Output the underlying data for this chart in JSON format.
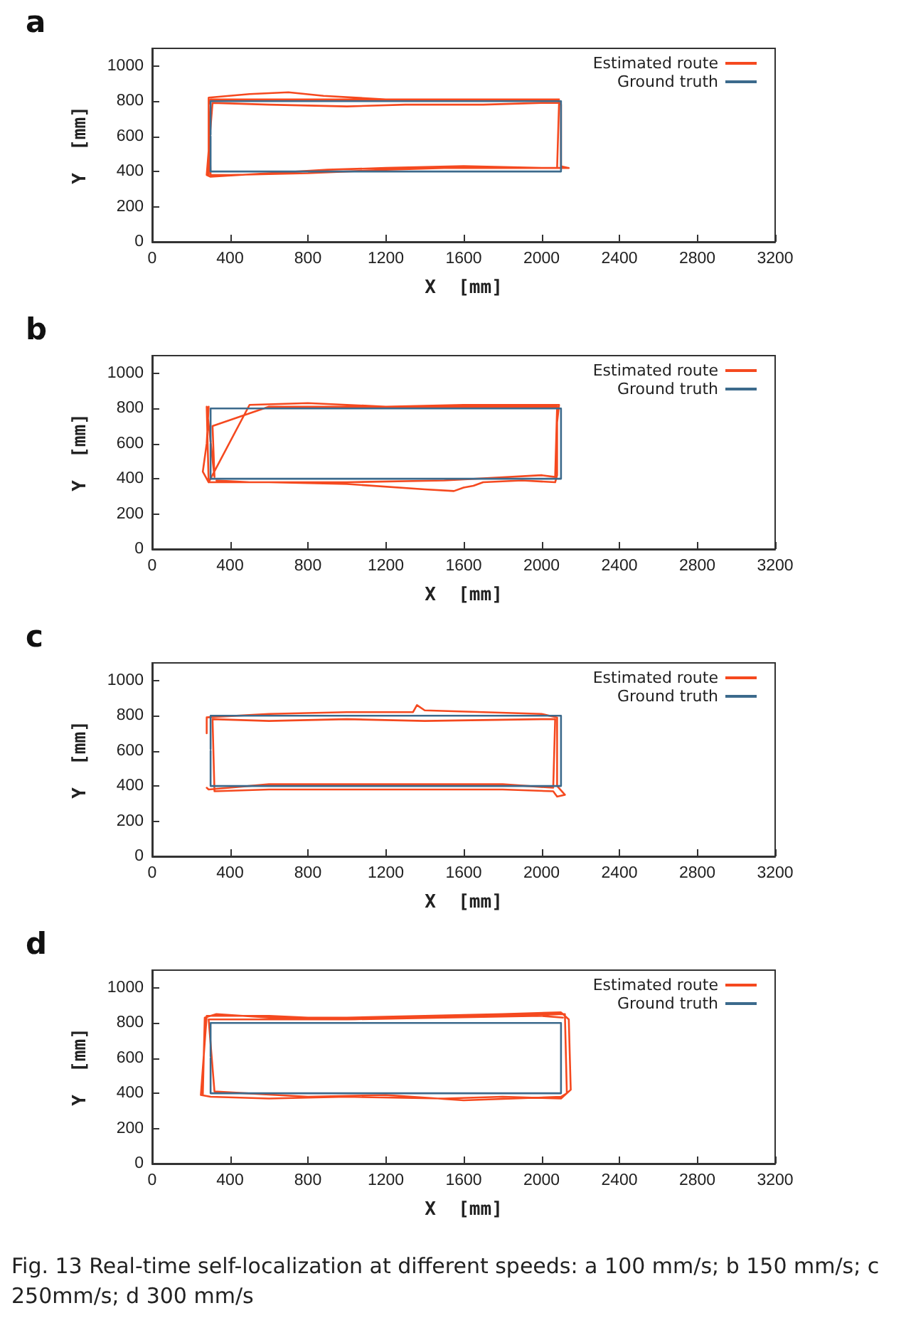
{
  "chart_data": [
    {
      "type": "line",
      "title": "a",
      "xlabel": "X  [mm]",
      "ylabel": "Y  [mm]",
      "xlim": [
        0,
        3200
      ],
      "ylim": [
        0,
        1100
      ],
      "xticks": [
        0,
        400,
        800,
        1200,
        1600,
        2000,
        2400,
        2800,
        3200
      ],
      "yticks": [
        0,
        200,
        400,
        600,
        800,
        1000
      ],
      "grid": false,
      "legend": "top right",
      "marker": "none",
      "line_style": "solid",
      "series": [
        {
          "name": "Estimated route",
          "color": "#f5491f",
          "x": [
            290,
            290,
            500,
            700,
            880,
            1200,
            1600,
            2000,
            2080,
            2100,
            2100,
            2140,
            2000,
            1600,
            1200,
            900,
            600,
            300,
            280,
            310,
            600,
            1000,
            1300,
            1700,
            2000,
            2090,
            2080,
            1900,
            1500,
            1200,
            800,
            400,
            300,
            290,
            300,
            700,
            1100,
            1500,
            1900,
            2090
          ],
          "values": [
            380,
            820,
            840,
            850,
            830,
            810,
            810,
            810,
            810,
            780,
            430,
            420,
            420,
            430,
            420,
            410,
            390,
            370,
            380,
            790,
            780,
            770,
            780,
            780,
            790,
            790,
            420,
            420,
            420,
            410,
            390,
            380,
            380,
            780,
            810,
            810,
            810,
            810,
            810,
            810
          ]
        },
        {
          "name": "Ground truth",
          "color": "#3c6a8c",
          "x": [
            300,
            300,
            2100,
            2100,
            300,
            300
          ],
          "values": [
            600,
            400,
            400,
            800,
            800,
            610
          ]
        }
      ]
    },
    {
      "type": "line",
      "title": "b",
      "xlabel": "X  [mm]",
      "ylabel": "Y  [mm]",
      "xlim": [
        0,
        3200
      ],
      "ylim": [
        0,
        1100
      ],
      "xticks": [
        0,
        400,
        800,
        1200,
        1600,
        2000,
        2400,
        2800,
        3200
      ],
      "yticks": [
        0,
        200,
        400,
        600,
        800,
        1000
      ],
      "grid": false,
      "legend": "top right",
      "marker": "none",
      "line_style": "solid",
      "series": [
        {
          "name": "Estimated route",
          "color": "#f5491f",
          "x": [
            290,
            280,
            260,
            270,
            290,
            500,
            800,
            1200,
            1600,
            2000,
            2090,
            2080,
            2080,
            2070,
            1900,
            1700,
            1650,
            1600,
            1550,
            1400,
            1000,
            600,
            290,
            280,
            320,
            310,
            600,
            1000,
            1400,
            1800,
            2080,
            2070,
            2000,
            1500,
            1000,
            500,
            330
          ],
          "values": [
            810,
            600,
            440,
            420,
            380,
            820,
            830,
            810,
            820,
            820,
            820,
            720,
            420,
            380,
            390,
            380,
            360,
            350,
            330,
            340,
            370,
            380,
            380,
            810,
            410,
            700,
            810,
            810,
            810,
            810,
            810,
            410,
            420,
            390,
            380,
            380,
            390
          ]
        },
        {
          "name": "Ground truth",
          "color": "#3c6a8c",
          "x": [
            300,
            300,
            2100,
            2100,
            300,
            300
          ],
          "values": [
            600,
            400,
            400,
            800,
            800,
            610
          ]
        }
      ]
    },
    {
      "type": "line",
      "title": "c",
      "xlabel": "X  [mm]",
      "ylabel": "Y  [mm]",
      "xlim": [
        0,
        3200
      ],
      "ylim": [
        0,
        1100
      ],
      "xticks": [
        0,
        400,
        800,
        1200,
        1600,
        2000,
        2400,
        2800,
        3200
      ],
      "yticks": [
        0,
        200,
        400,
        600,
        800,
        1000
      ],
      "grid": false,
      "legend": "top right",
      "marker": "none",
      "line_style": "solid",
      "series": [
        {
          "name": "Estimated route",
          "color": "#f5491f",
          "x": [
            280,
            280,
            600,
            1000,
            1340,
            1360,
            1400,
            1700,
            2000,
            2080,
            2080,
            2120,
            2080,
            2060,
            1800,
            1400,
            1000,
            600,
            320,
            310,
            600,
            1000,
            1400,
            2000,
            2070,
            2060,
            1800,
            1400,
            1000,
            600,
            290,
            280
          ],
          "values": [
            700,
            790,
            810,
            820,
            820,
            860,
            830,
            820,
            810,
            790,
            400,
            350,
            340,
            370,
            380,
            380,
            380,
            380,
            370,
            780,
            770,
            780,
            770,
            780,
            780,
            390,
            410,
            410,
            410,
            410,
            380,
            390
          ]
        },
        {
          "name": "Ground truth",
          "color": "#3c6a8c",
          "x": [
            300,
            300,
            2100,
            2100,
            300,
            300
          ],
          "values": [
            600,
            400,
            400,
            800,
            800,
            610
          ]
        }
      ]
    },
    {
      "type": "line",
      "title": "d",
      "xlabel": "X  [mm]",
      "ylabel": "Y  [mm]",
      "xlim": [
        0,
        3200
      ],
      "ylim": [
        0,
        1100
      ],
      "xticks": [
        0,
        400,
        800,
        1200,
        1600,
        2000,
        2400,
        2800,
        3200
      ],
      "yticks": [
        0,
        200,
        400,
        600,
        800,
        1000
      ],
      "grid": false,
      "legend": "top right",
      "marker": "none",
      "line_style": "solid",
      "annotations": [
        "Fig. 13  Real-time self-localization at different speeds: a 100 mm/s; b 150 mm/s; c 250mm/s; d 300 mm/s"
      ],
      "series": [
        {
          "name": "Estimated route",
          "color": "#f5491f",
          "x": [
            260,
            270,
            330,
            600,
            1000,
            1400,
            1800,
            2100,
            2140,
            2150,
            2100,
            1800,
            1500,
            1000,
            600,
            300,
            250,
            280,
            600,
            1000,
            1400,
            1800,
            2120,
            2130,
            2100,
            1600,
            1200,
            800,
            320,
            290,
            600,
            1000,
            1500,
            2000,
            2110
          ],
          "values": [
            390,
            830,
            850,
            830,
            830,
            840,
            850,
            860,
            820,
            420,
            370,
            380,
            370,
            380,
            370,
            380,
            390,
            840,
            840,
            820,
            830,
            840,
            850,
            400,
            380,
            360,
            390,
            380,
            410,
            820,
            820,
            820,
            830,
            840,
            830
          ]
        },
        {
          "name": "Ground truth",
          "color": "#3c6a8c",
          "x": [
            300,
            300,
            2100,
            2100,
            300,
            300
          ],
          "values": [
            600,
            400,
            400,
            800,
            800,
            610
          ]
        }
      ]
    }
  ]
}
